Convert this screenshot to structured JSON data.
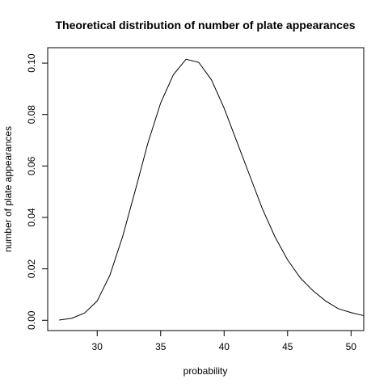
{
  "chart_data": {
    "type": "line",
    "title": "Theoretical distribution of number of plate appearances",
    "xlabel": "probability",
    "ylabel": "number of plate appearances",
    "xlim": [
      26.1,
      51
    ],
    "ylim": [
      -0.004,
      0.106
    ],
    "xticks": [
      30,
      35,
      40,
      45,
      50
    ],
    "yticks": [
      0.0,
      0.02,
      0.04,
      0.06,
      0.08,
      0.1
    ],
    "ytick_labels": [
      "0.00",
      "0.02",
      "0.04",
      "0.06",
      "0.08",
      "0.10"
    ],
    "grid": false,
    "legend": "none",
    "line_color": "#000000",
    "series": [
      {
        "x": [
          27,
          28,
          29,
          30,
          31,
          32,
          33,
          34,
          35,
          36,
          37,
          38,
          39,
          40,
          41,
          42,
          43,
          44,
          45,
          46,
          47,
          48,
          49,
          50,
          51
        ],
        "values": [
          0.0001,
          0.0008,
          0.0028,
          0.0075,
          0.0175,
          0.0325,
          0.0505,
          0.069,
          0.0845,
          0.0955,
          0.1015,
          0.1003,
          0.0935,
          0.0825,
          0.0695,
          0.0565,
          0.0435,
          0.0325,
          0.0235,
          0.0165,
          0.0115,
          0.0075,
          0.0045,
          0.003,
          0.0018
        ]
      }
    ]
  }
}
